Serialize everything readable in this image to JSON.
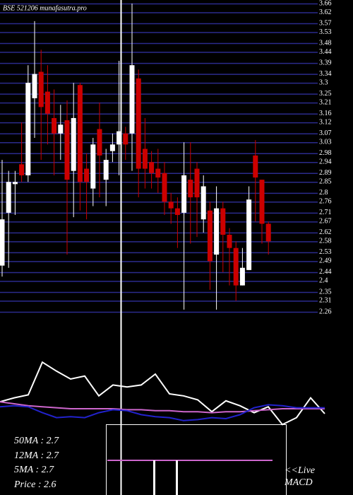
{
  "chart_data": [
    {
      "type": "candlestick",
      "title": "BSE 521206  munafasutra.pro",
      "up_color": "#ffffff",
      "down_color": "#cc0000",
      "grid": true,
      "grid_color": "#2b2b8c",
      "ylim": [
        2.26,
        3.66
      ],
      "yticks": [
        3.66,
        3.62,
        3.57,
        3.53,
        3.48,
        3.44,
        3.39,
        3.34,
        3.3,
        3.25,
        3.21,
        3.16,
        3.12,
        3.07,
        3.03,
        2.98,
        2.94,
        2.89,
        2.85,
        2.8,
        2.76,
        2.71,
        2.67,
        2.62,
        2.58,
        2.53,
        2.49,
        2.44,
        2.4,
        2.35,
        2.31,
        2.26
      ],
      "open": [
        2.47,
        2.71,
        2.84,
        2.93,
        2.88,
        3.23,
        3.35,
        3.26,
        3.14,
        3.07,
        3.13,
        2.9,
        3.29,
        2.91,
        2.82,
        3.09,
        2.86,
        2.99,
        3.02,
        3.07,
        3.07,
        3.32,
        3.0,
        2.94,
        2.91,
        2.89,
        2.76,
        2.73,
        2.71,
        2.86,
        2.91,
        2.68,
        2.72,
        2.52,
        2.73,
        2.61,
        2.55,
        2.38,
        2.45,
        2.97,
        2.86,
        2.66
      ],
      "high": [
        2.95,
        2.9,
        2.9,
        3.12,
        3.38,
        3.58,
        3.45,
        3.38,
        3.27,
        3.2,
        3.22,
        3.3,
        3.3,
        2.98,
        3.05,
        3.21,
        3.0,
        3.07,
        3.4,
        3.1,
        3.66,
        3.36,
        3.14,
        2.99,
        3.0,
        2.94,
        2.8,
        2.78,
        3.03,
        3.03,
        2.94,
        2.88,
        2.76,
        2.83,
        2.76,
        2.64,
        2.58,
        2.55,
        2.83,
        3.04,
        2.86,
        2.67
      ],
      "low": [
        2.42,
        2.46,
        2.7,
        2.85,
        2.85,
        3.05,
        2.95,
        3.02,
        2.88,
        2.95,
        2.52,
        2.69,
        2.72,
        2.68,
        2.74,
        2.78,
        2.74,
        2.94,
        2.88,
        2.95,
        2.9,
        2.78,
        2.82,
        2.82,
        2.8,
        2.7,
        2.66,
        2.55,
        2.27,
        2.57,
        2.6,
        2.62,
        2.36,
        2.27,
        2.44,
        2.38,
        2.31,
        2.38,
        2.45,
        2.67,
        2.57,
        2.52
      ],
      "close": [
        2.68,
        2.85,
        2.85,
        2.88,
        3.3,
        3.34,
        3.19,
        3.16,
        3.07,
        3.11,
        2.86,
        3.14,
        2.85,
        2.85,
        3.02,
        2.97,
        2.95,
        3.02,
        3.08,
        3.02,
        3.38,
        2.91,
        2.91,
        2.89,
        2.87,
        2.76,
        2.73,
        2.7,
        2.88,
        2.78,
        2.78,
        2.83,
        2.49,
        2.73,
        2.61,
        2.55,
        2.38,
        2.46,
        2.77,
        2.87,
        2.66,
        2.58
      ]
    },
    {
      "type": "line",
      "ylim": [
        0,
        100
      ],
      "xlim": [
        0,
        465
      ],
      "x": [
        0,
        20,
        40,
        60,
        80,
        100,
        120,
        140,
        160,
        180,
        200,
        220,
        240,
        260,
        280,
        300,
        320,
        340,
        360,
        380,
        400,
        420,
        440,
        460
      ],
      "series": [
        {
          "color": "#ffffff",
          "values": [
            37,
            41,
            44,
            77,
            68,
            60,
            63,
            43,
            54,
            52,
            54,
            65,
            45,
            43,
            39,
            27,
            38,
            33,
            26,
            32,
            14,
            21,
            41,
            25
          ]
        },
        {
          "color": "#cc66cc",
          "values": [
            37,
            35,
            33,
            32,
            31,
            30,
            30,
            30,
            30,
            29,
            29,
            28,
            28,
            27,
            27,
            26,
            27,
            27,
            28,
            29,
            30,
            30,
            30,
            30
          ]
        },
        {
          "color": "#2222cc",
          "values": [
            32,
            33,
            32,
            26,
            21,
            22,
            21,
            26,
            29,
            28,
            24,
            22,
            21,
            18,
            19,
            21,
            20,
            24,
            31,
            34,
            33,
            31,
            31,
            31
          ]
        }
      ],
      "stats": [
        "50MA : 2.7",
        "12MA : 2.7",
        "5MA : 2.7",
        "Price  : 2.6"
      ],
      "live_label": "<<Live",
      "indicator_label": "MACD"
    }
  ]
}
